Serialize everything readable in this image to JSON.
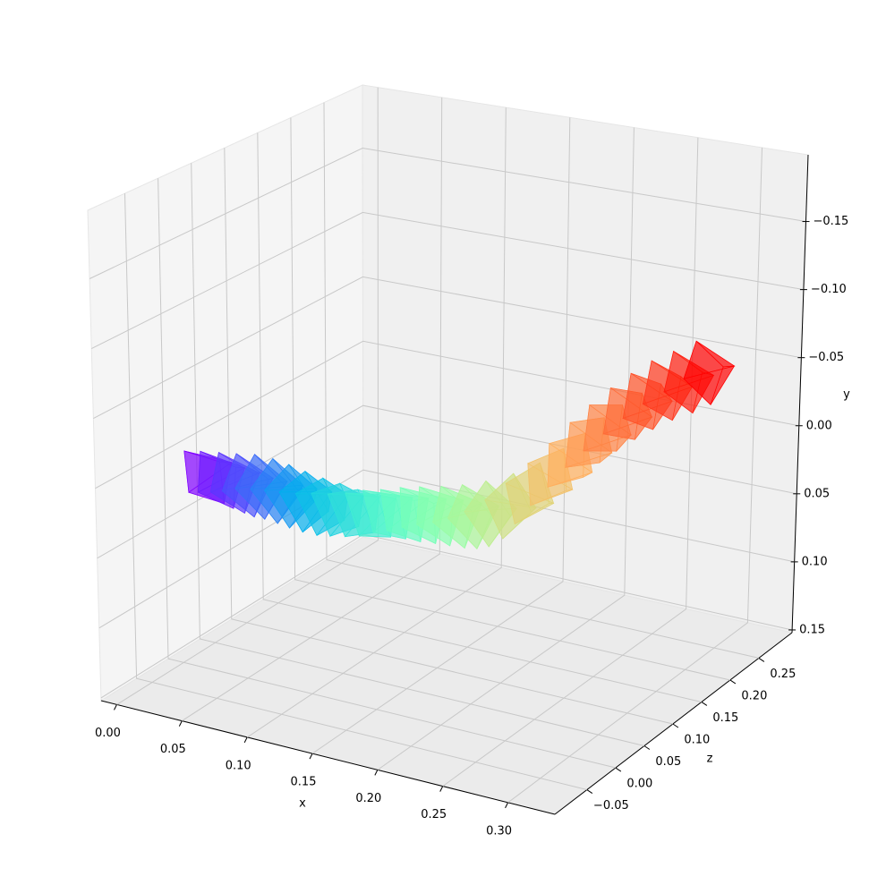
{
  "chart_data": {
    "type": "frustum3d",
    "xlabel": "x",
    "ylabel": "y",
    "zlabel": "z",
    "colormap": "rainbow",
    "grid": true,
    "yaxis_inverted": true,
    "xlim": [
      -0.012,
      0.336
    ],
    "ylim": [
      -0.199,
      0.152
    ],
    "zlim": [
      -0.106,
      0.308
    ],
    "xticks": [
      {
        "value": 0,
        "label": "0.00"
      },
      0.05,
      {
        "value": 0.1,
        "label": "0.10"
      },
      0.15,
      {
        "value": 0.2,
        "label": "0.20"
      },
      0.25,
      {
        "value": 0.3,
        "label": "0.30"
      }
    ],
    "yticks": [
      {
        "value": -0.15,
        "label": "−0.15"
      },
      {
        "value": -0.1,
        "label": "−0.10"
      },
      {
        "value": -0.05,
        "label": "−0.05"
      },
      {
        "value": 0,
        "label": "0.00"
      },
      0.05,
      {
        "value": 0.1,
        "label": "0.10"
      },
      0.15
    ],
    "zticks": [
      {
        "value": -0.05,
        "label": "−0.05"
      },
      {
        "value": 0,
        "label": "0.00"
      },
      0.05,
      {
        "value": 0.1,
        "label": "0.10"
      },
      0.15,
      {
        "value": 0.2,
        "label": "0.20"
      },
      0.25
    ],
    "x": [
      0.01,
      0.02,
      0.031,
      0.041,
      0.051,
      0.062,
      0.072,
      0.082,
      0.093,
      0.103,
      0.113,
      0.124,
      0.134,
      0.144,
      0.155,
      0.165,
      0.176,
      0.186,
      0.196,
      0.207,
      0.217,
      0.227,
      0.238,
      0.248,
      0.258,
      0.269,
      0.279,
      0.289,
      0.3,
      0.31
    ],
    "y": [
      0.02,
      0.022,
      0.024,
      0.026,
      0.027,
      0.028,
      0.029,
      0.03,
      0.031,
      0.031,
      0.031,
      0.031,
      0.03,
      0.03,
      0.03,
      0.031,
      0.033,
      0.035,
      0.037,
      0.037,
      0.034,
      0.025,
      0.013,
      0.0,
      -0.012,
      -0.024,
      -0.034,
      -0.043,
      -0.05,
      -0.055
    ],
    "z": [
      0.06,
      0.06,
      0.061,
      0.062,
      0.064,
      0.066,
      0.068,
      0.071,
      0.074,
      0.078,
      0.083,
      0.087,
      0.093,
      0.098,
      0.104,
      0.111,
      0.118,
      0.125,
      0.133,
      0.142,
      0.15,
      0.16,
      0.169,
      0.18,
      0.19,
      0.201,
      0.213,
      0.225,
      0.237,
      0.25
    ]
  }
}
